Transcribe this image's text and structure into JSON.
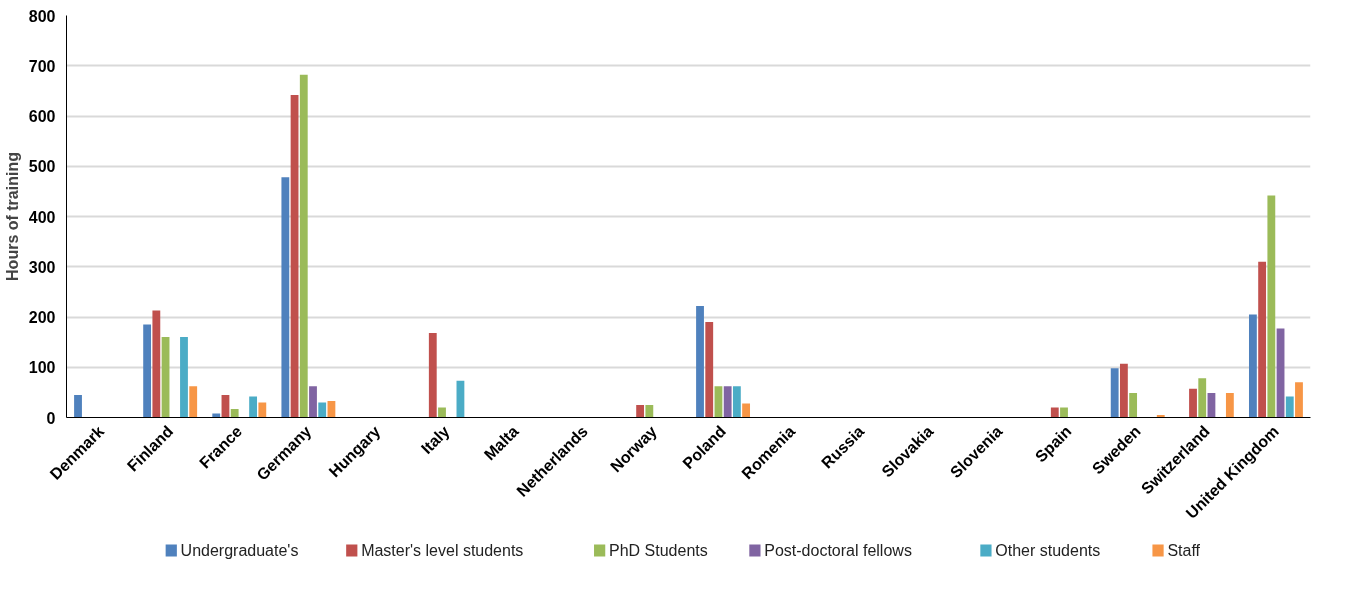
{
  "chart_data": {
    "type": "bar",
    "ylabel": "Hours of training",
    "categories": [
      "Denmark",
      "Finland",
      "France",
      "Germany",
      "Hungary",
      "Italy",
      "Malta",
      "Netherlands",
      "Norway",
      "Poland",
      "Romenia",
      "Russia",
      "Slovakia",
      "Slovenia",
      "Spain",
      "Sweden",
      "Switzerland",
      "United Kingdom"
    ],
    "series": [
      {
        "name": "Undergraduate's",
        "color": "#4f81bd",
        "values": [
          45,
          185,
          8,
          478,
          null,
          null,
          null,
          null,
          null,
          222,
          null,
          null,
          null,
          null,
          null,
          98,
          null,
          205
        ]
      },
      {
        "name": "Master's level students",
        "color": "#c0504d",
        "values": [
          null,
          213,
          45,
          642,
          null,
          168,
          null,
          null,
          25,
          190,
          null,
          null,
          null,
          null,
          20,
          107,
          57,
          310
        ]
      },
      {
        "name": "PhD Students",
        "color": "#9bbb59",
        "values": [
          null,
          160,
          17,
          682,
          null,
          20,
          null,
          null,
          25,
          62,
          null,
          null,
          null,
          null,
          20,
          49,
          78,
          442
        ]
      },
      {
        "name": "Post-doctoral fellows",
        "color": "#8064a2",
        "values": [
          null,
          null,
          null,
          62,
          null,
          null,
          null,
          null,
          null,
          62,
          null,
          null,
          null,
          null,
          null,
          null,
          49,
          177
        ]
      },
      {
        "name": "Other students",
        "color": "#4bacc6",
        "values": [
          null,
          160,
          42,
          30,
          null,
          73,
          null,
          null,
          null,
          62,
          null,
          null,
          null,
          null,
          null,
          null,
          null,
          42
        ]
      },
      {
        "name": "Staff",
        "color": "#f79646",
        "values": [
          null,
          62,
          30,
          33,
          null,
          null,
          null,
          null,
          null,
          28,
          null,
          null,
          null,
          null,
          null,
          5,
          49,
          70
        ]
      }
    ],
    "ylim": [
      0,
      800
    ],
    "yticks": [
      0,
      100,
      200,
      300,
      400,
      500,
      600,
      700,
      800
    ],
    "grid": "y",
    "legend": "bottom"
  }
}
